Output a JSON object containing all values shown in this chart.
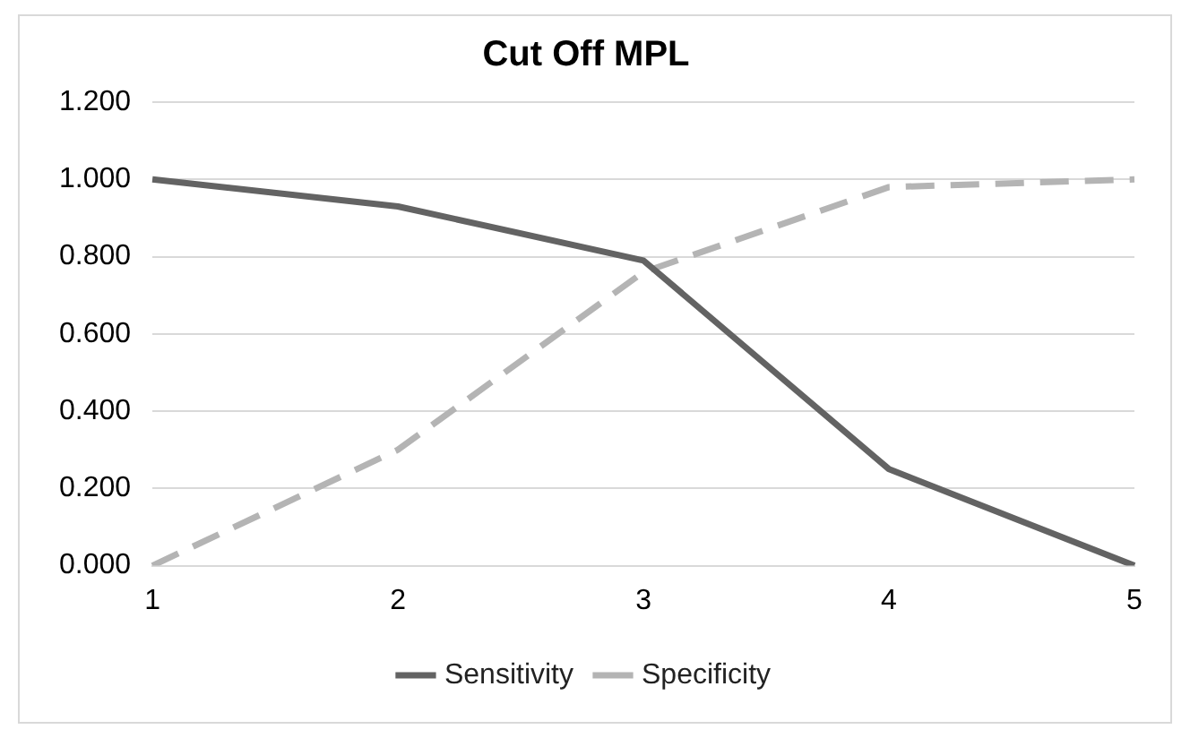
{
  "chart_data": {
    "type": "line",
    "title": "Cut Off MPL",
    "categories": [
      "1",
      "2",
      "3",
      "4",
      "5"
    ],
    "series": [
      {
        "name": "Sensitivity",
        "color": "#636363",
        "values": [
          1.0,
          0.93,
          0.79,
          0.25,
          0.0
        ],
        "line_style": "solid"
      },
      {
        "name": "Specificity",
        "color": "#b4b4b4",
        "values": [
          0.0,
          0.3,
          0.76,
          0.98,
          1.0
        ],
        "line_style": "dashed"
      }
    ],
    "ylim": [
      0,
      1.2
    ],
    "yticks": [
      {
        "value": 0,
        "label": "0.000"
      },
      {
        "value": 0.2,
        "label": "0.200"
      },
      {
        "value": 0.4,
        "label": "0.400"
      },
      {
        "value": 0.6,
        "label": "0.600"
      },
      {
        "value": 0.8,
        "label": "0.800"
      },
      {
        "value": 1.0,
        "label": "1.000"
      },
      {
        "value": 1.2,
        "label": "1.200"
      }
    ],
    "grid": "y",
    "legend": "bottom",
    "marker": "none"
  }
}
